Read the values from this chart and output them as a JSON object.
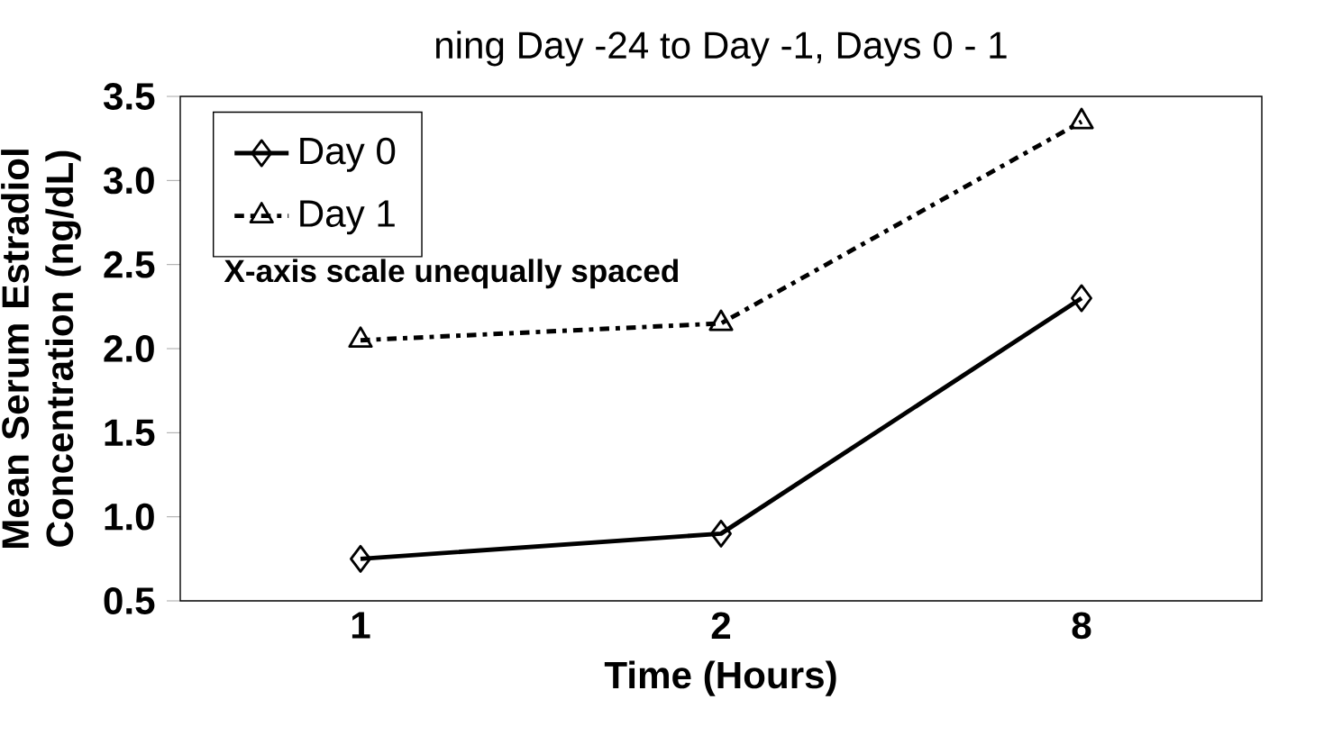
{
  "chart_data": {
    "type": "line",
    "title": "ning Day -24 to Day -1, Days 0 - 1",
    "xlabel": "Time (Hours)",
    "ylabel": "Mean Serum Estradiol Concentration (ng/dL)",
    "categories": [
      "1",
      "2",
      "8"
    ],
    "series": [
      {
        "name": "Day 0",
        "color": "#000000",
        "marker": "diamond",
        "line_style": "solid",
        "values": [
          0.75,
          0.9,
          2.3
        ]
      },
      {
        "name": "Day 1",
        "color": "#000000",
        "marker": "triangle",
        "line_style": "dashed",
        "values": [
          2.05,
          2.15,
          3.35
        ]
      }
    ],
    "ylim": [
      0.5,
      3.5
    ],
    "yticks": [
      0.5,
      {
        "value": 1,
        "label": "1.0"
      },
      1.5,
      {
        "value": 2,
        "label": "2.0"
      },
      2.5,
      {
        "value": 3,
        "label": "3.0"
      },
      3.5
    ],
    "legend": "top left",
    "grid": false,
    "annotations": [
      "X-axis scale unequally spaced"
    ]
  }
}
